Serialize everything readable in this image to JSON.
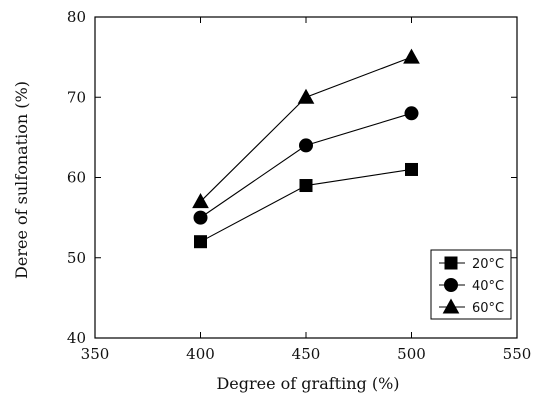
{
  "chart_data": {
    "type": "line",
    "xlabel": "Degree of grafting (%)",
    "ylabel": "Deree of sulfonation (%)",
    "xlim": [
      350,
      550
    ],
    "ylim": [
      40,
      80
    ],
    "xticks": [
      "350",
      "400",
      "450",
      "500",
      "550"
    ],
    "yticks": [
      "40",
      "50",
      "60",
      "70",
      "80"
    ],
    "x": [
      400,
      450,
      500
    ],
    "grid": false,
    "legend_position": "bottom-right",
    "series": [
      {
        "name": "20°C",
        "marker": "square",
        "values": [
          52,
          59,
          61
        ]
      },
      {
        "name": "40°C",
        "marker": "circle",
        "values": [
          55,
          64,
          68
        ]
      },
      {
        "name": "60°C",
        "marker": "triangle",
        "values": [
          57,
          70,
          75
        ]
      }
    ]
  }
}
